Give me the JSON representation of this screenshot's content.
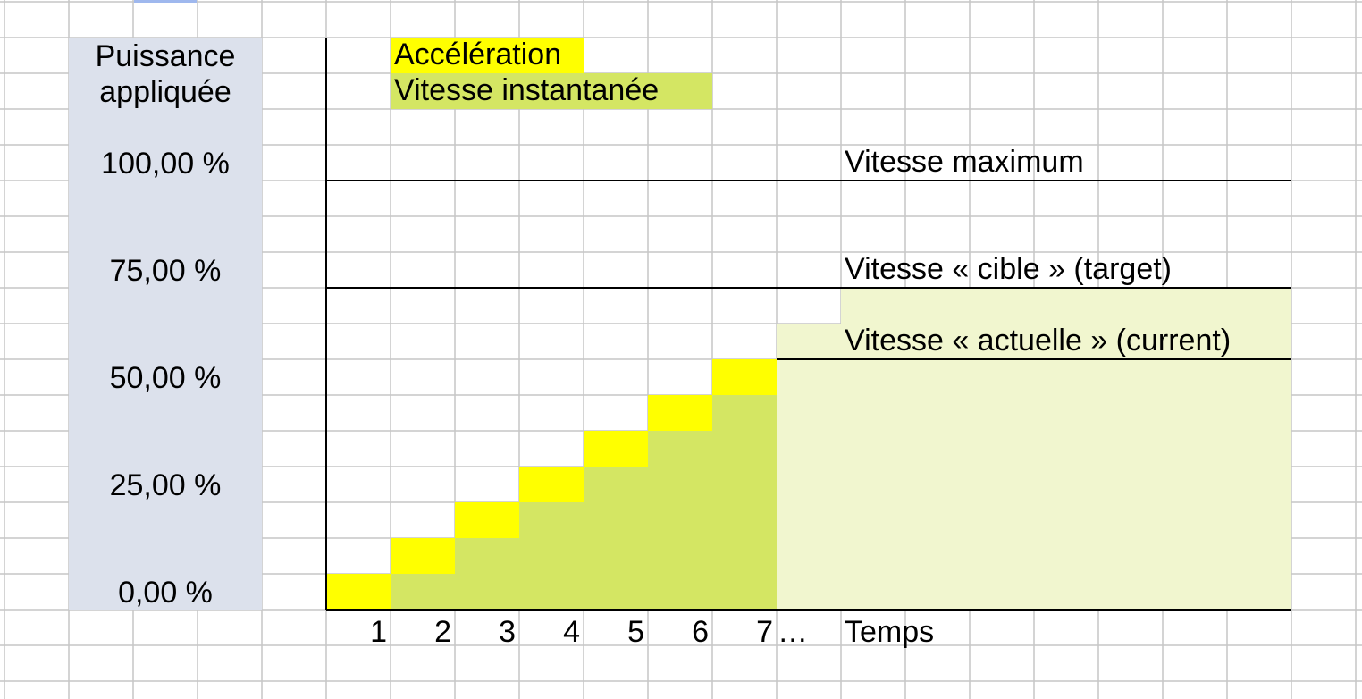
{
  "axis_label": {
    "line1": "Puissance",
    "line2": "appliquée"
  },
  "y_labels": [
    "100,00 %",
    "75,00 %",
    "50,00 %",
    "25,00 %",
    "0,00 %"
  ],
  "legend": [
    "Accélération",
    "Vitesse instantanée"
  ],
  "annotations": [
    "Vitesse maximum",
    "Vitesse « cible » (target)",
    "Vitesse « actuelle » (current)"
  ],
  "x_labels": [
    "1",
    "2",
    "3",
    "4",
    "5",
    "6",
    "7"
  ],
  "x_more": "…",
  "x_title": "Temps"
}
